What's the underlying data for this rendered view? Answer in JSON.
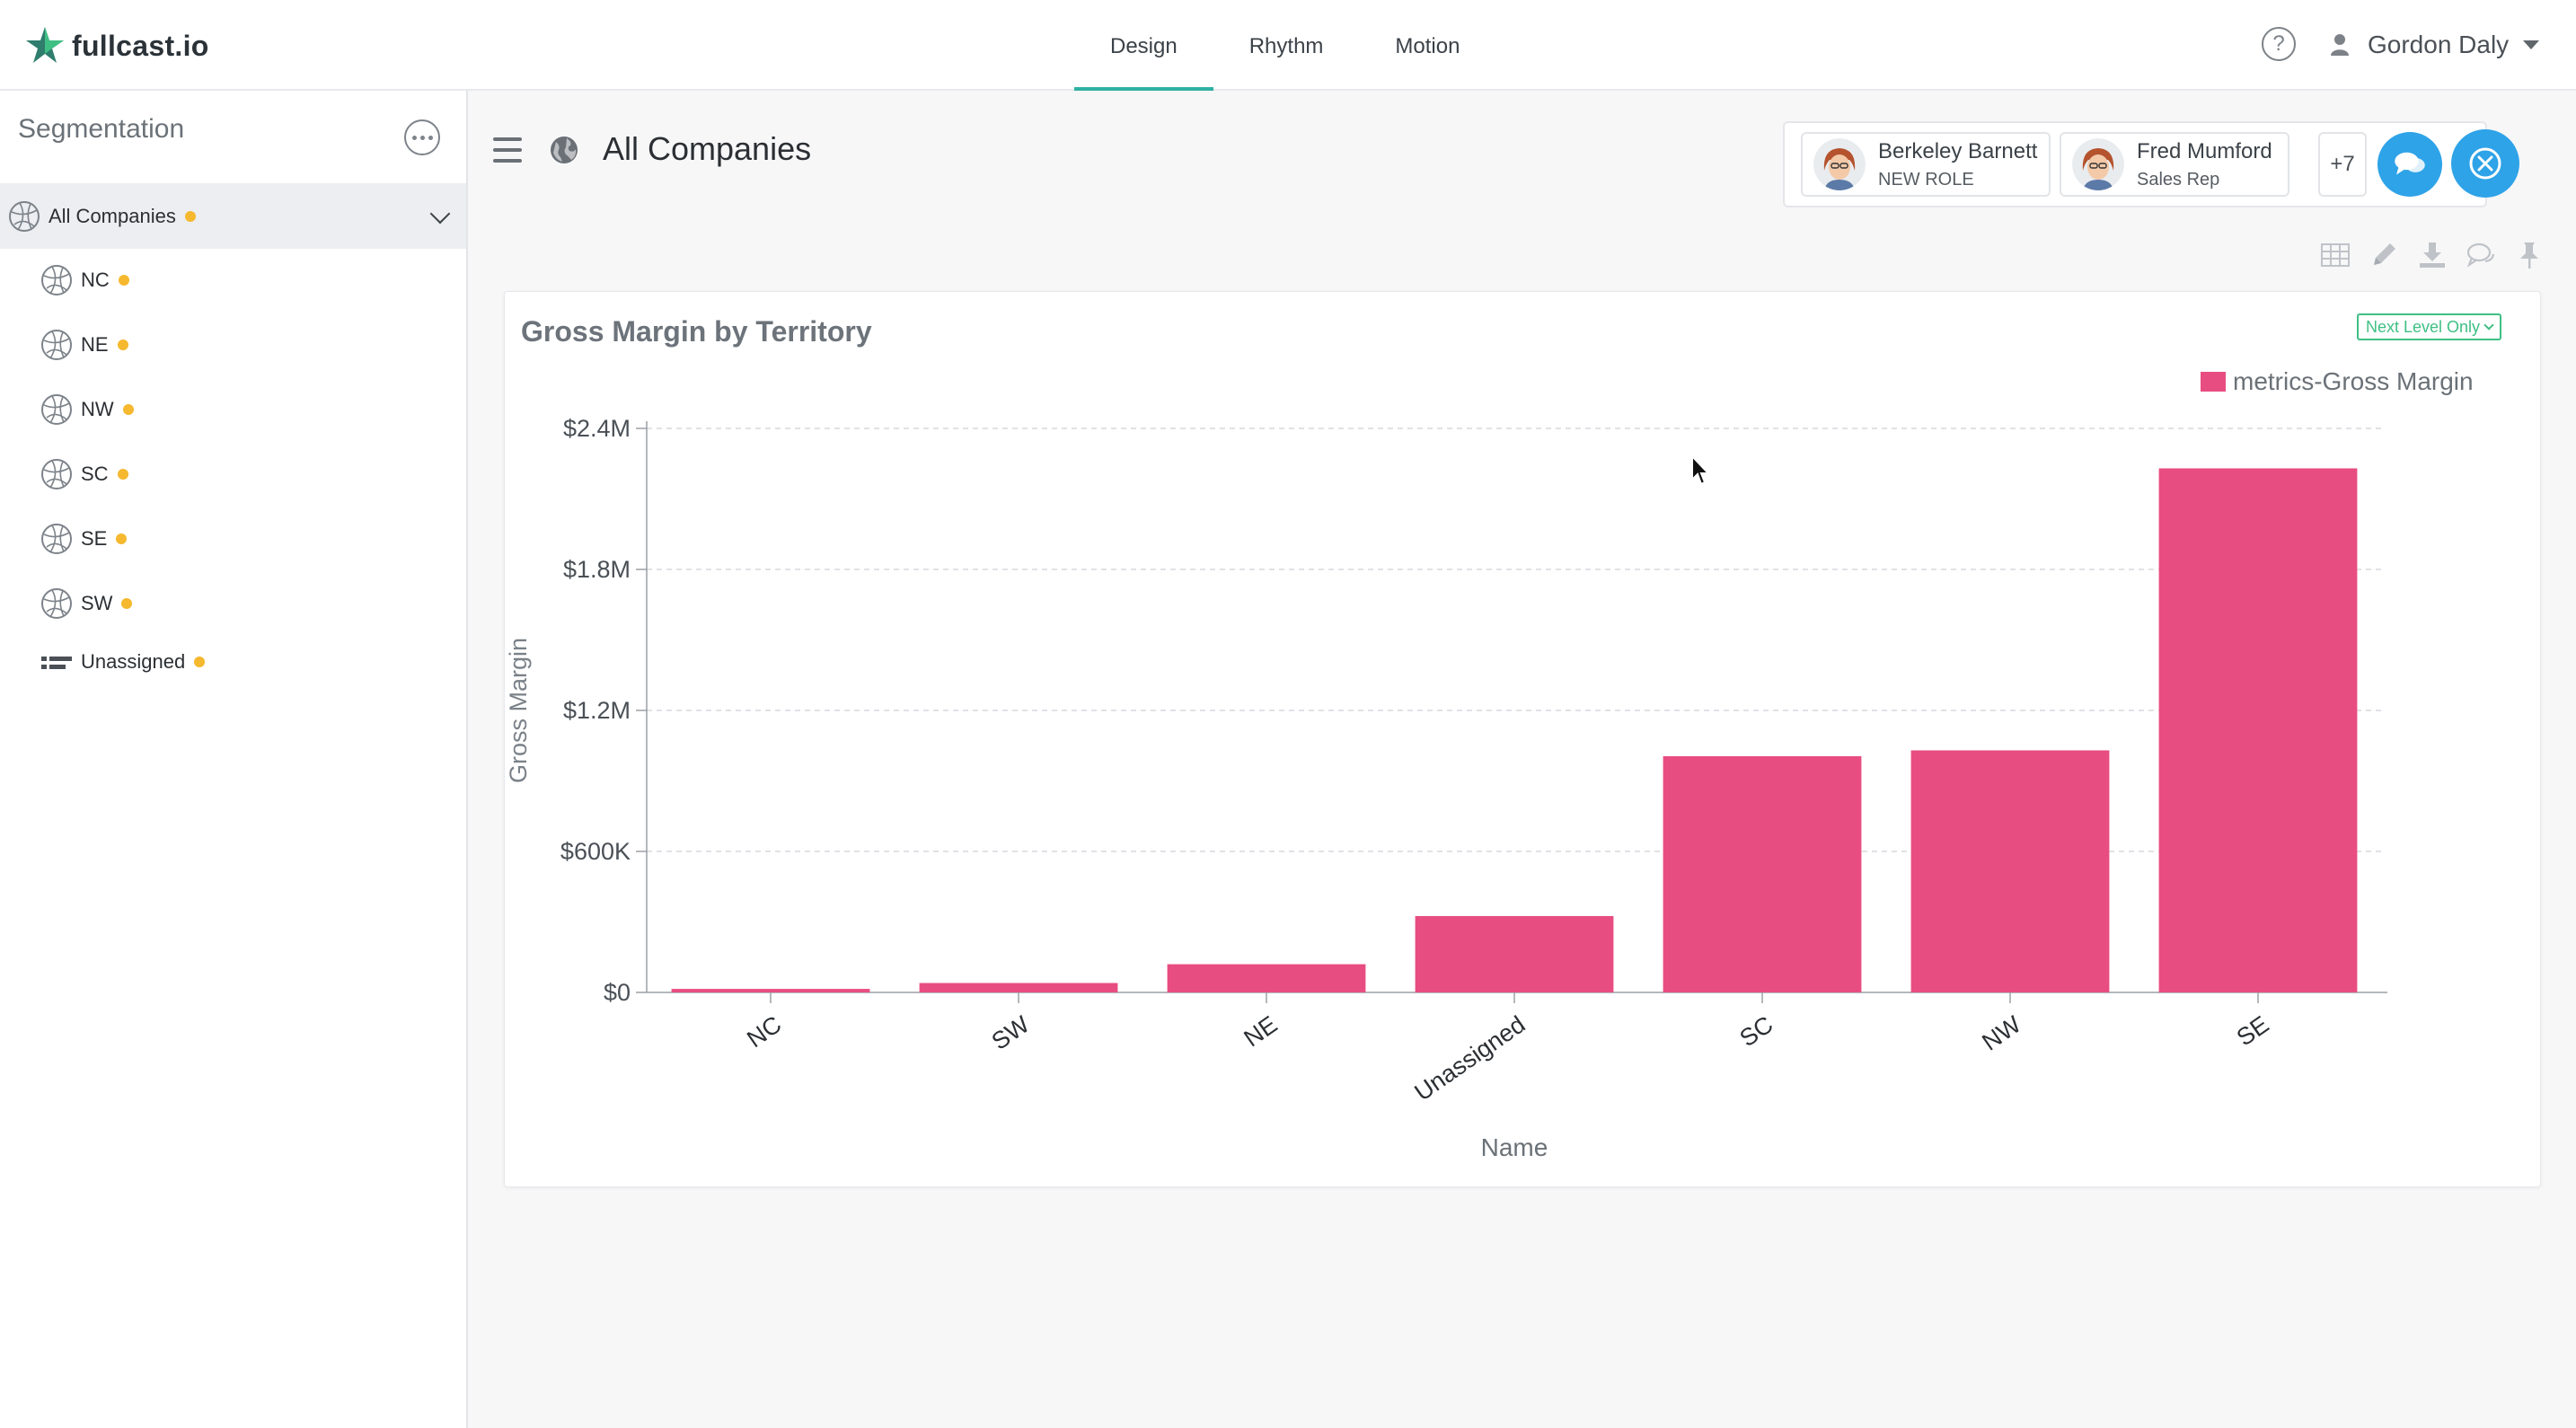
{
  "app": {
    "logo_text": "fullcast.io",
    "nav": [
      {
        "label": "Design",
        "active": true
      },
      {
        "label": "Rhythm",
        "active": false
      },
      {
        "label": "Motion",
        "active": false
      }
    ],
    "help_label": "?",
    "user_name": "Gordon Daly"
  },
  "sidebar": {
    "title": "Segmentation",
    "root": {
      "label": "All Companies",
      "icon": "globe-icon"
    },
    "items": [
      {
        "label": "NC",
        "icon": "globe-icon"
      },
      {
        "label": "NE",
        "icon": "globe-icon"
      },
      {
        "label": "NW",
        "icon": "globe-icon"
      },
      {
        "label": "SC",
        "icon": "globe-icon"
      },
      {
        "label": "SE",
        "icon": "globe-icon"
      },
      {
        "label": "SW",
        "icon": "globe-icon"
      },
      {
        "label": "Unassigned",
        "icon": "list-icon"
      }
    ],
    "status_color": "#f5b82e"
  },
  "main": {
    "title": "All Companies",
    "collaborators": [
      {
        "name": "Berkeley Barnett",
        "role": "NEW ROLE"
      },
      {
        "name": "Fred Mumford",
        "role": "Sales Rep"
      }
    ],
    "more_collaborators": "+7",
    "accent_color": "#2ea3e8"
  },
  "chart_card": {
    "title": "Gross Margin by Territory",
    "level_button": "Next Level Only"
  },
  "chart_data": {
    "type": "bar",
    "title": "Gross Margin by Territory",
    "xlabel": "Name",
    "ylabel": "Gross Margin",
    "categories": [
      "NC",
      "SW",
      "NE",
      "Unassigned",
      "SC",
      "NW",
      "SE"
    ],
    "series": [
      {
        "name": "metrics-Gross Margin",
        "values": [
          15000,
          40000,
          120000,
          325000,
          1005000,
          1030000,
          2230000
        ],
        "color": "#e84d82"
      }
    ],
    "ylim": [
      0,
      2400000
    ],
    "yticks": [
      {
        "value": 0,
        "label": "$0"
      },
      {
        "value": 600000,
        "label": "$600K"
      },
      {
        "value": 1200000,
        "label": "$1.2M"
      },
      {
        "value": 1800000,
        "label": "$1.8M"
      },
      {
        "value": 2400000,
        "label": "$2.4M"
      }
    ],
    "grid": true,
    "legend_position": "top-right"
  }
}
